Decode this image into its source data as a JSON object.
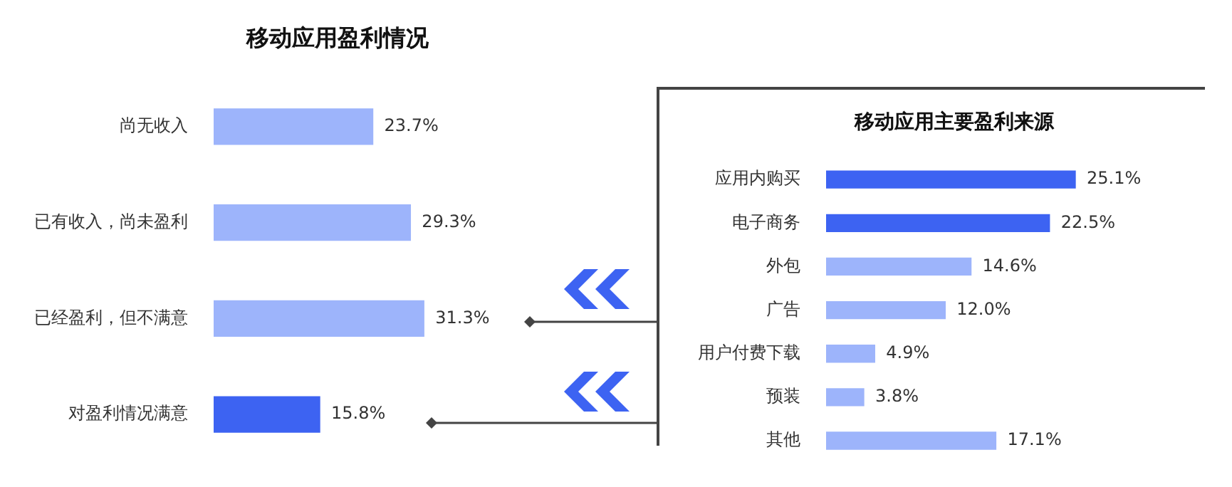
{
  "chart_data": [
    {
      "type": "bar",
      "orientation": "horizontal",
      "title": "移动应用盈利情况",
      "categories": [
        "尚无收入",
        "已有收入，尚未盈利",
        "已经盈利，但不满意",
        "对盈利情况满意"
      ],
      "values": [
        23.7,
        29.3,
        31.3,
        15.8
      ],
      "colors": [
        "#9db4fb",
        "#9db4fb",
        "#9db4fb",
        "#3d63f2"
      ],
      "value_labels": [
        "23.7%",
        "29.3%",
        "31.3%",
        "15.8%"
      ],
      "legend": false
    },
    {
      "type": "bar",
      "orientation": "horizontal",
      "title": "移动应用主要盈利来源",
      "categories": [
        "应用内购买",
        "电子商务",
        "外包",
        "广告",
        "用户付费下载",
        "预装",
        "其他"
      ],
      "values": [
        25.1,
        22.5,
        14.6,
        12.0,
        4.9,
        3.8,
        17.1
      ],
      "colors": [
        "#3d63f2",
        "#3d63f2",
        "#9db4fb",
        "#9db4fb",
        "#9db4fb",
        "#9db4fb",
        "#9db4fb"
      ],
      "value_labels": [
        "25.1%",
        "22.5%",
        "14.6%",
        "12.0%",
        "4.9%",
        "3.8%",
        "17.1%"
      ],
      "legend": false
    }
  ]
}
